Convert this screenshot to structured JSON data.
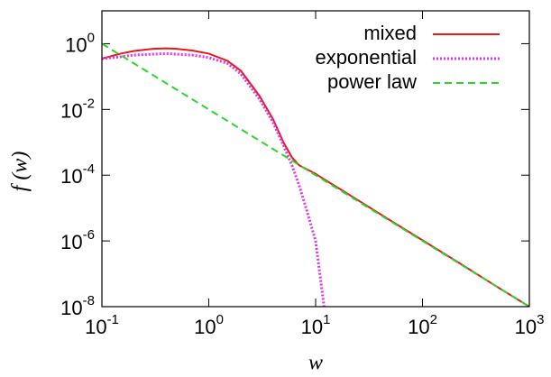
{
  "chart_data": {
    "type": "line",
    "x_label": "w",
    "y_label": "f (w)",
    "x": [
      0.1,
      0.15,
      0.2,
      0.3,
      0.4,
      0.5,
      0.7,
      1,
      1.5,
      2,
      3,
      4,
      5,
      6,
      7,
      8,
      10,
      12,
      20,
      50,
      100,
      200,
      500,
      1000
    ],
    "series": [
      {
        "name": "mixed",
        "color": "#e41a1c",
        "dash": "solid",
        "values": [
          0.35,
          0.5,
          0.6,
          0.7,
          0.72,
          0.7,
          0.62,
          0.5,
          0.3,
          0.15,
          0.025,
          0.005,
          0.001,
          0.00035,
          0.0002,
          0.00016,
          0.00011,
          7.5e-05,
          2.7e-05,
          4.2e-06,
          1.05e-06,
          2.6e-07,
          4e-08,
          1e-08
        ]
      },
      {
        "name": "exponential",
        "color": "#e633e6",
        "dash": "dotted",
        "values": [
          0.35,
          0.4,
          0.45,
          0.48,
          0.5,
          0.48,
          0.45,
          0.38,
          0.25,
          0.12,
          0.02,
          0.004,
          0.0008,
          0.0002,
          5e-05,
          1.2e-05,
          1e-06,
          1e-08,
          null,
          null,
          null,
          null,
          null,
          null
        ]
      },
      {
        "name": "power law",
        "color": "#2ad62a",
        "dash": "dashed",
        "values": [
          1,
          0.444,
          0.25,
          0.111,
          0.0625,
          0.04,
          0.0204,
          0.01,
          0.00444,
          0.0025,
          0.00111,
          0.000625,
          0.0004,
          0.000278,
          0.000204,
          0.000156,
          0.0001,
          6.94e-05,
          2.5e-05,
          4e-06,
          1e-06,
          2.5e-07,
          4e-08,
          1e-08
        ]
      }
    ],
    "xscale": "log",
    "yscale": "log",
    "xlim": [
      0.1,
      1000
    ],
    "ylim": [
      1e-08,
      10
    ],
    "xticks": [
      {
        "value": 0.1,
        "label": "10^-1"
      },
      {
        "value": 1,
        "label": "10^0"
      },
      {
        "value": 10,
        "label": "10^1"
      },
      {
        "value": 100,
        "label": "10^2"
      },
      {
        "value": 1000,
        "label": "10^3"
      }
    ],
    "yticks": [
      {
        "value": 1e-08,
        "label": "10^-8"
      },
      {
        "value": 1e-06,
        "label": "10^-6"
      },
      {
        "value": 0.0001,
        "label": "10^-4"
      },
      {
        "value": 0.01,
        "label": "10^-2"
      },
      {
        "value": 1,
        "label": "10^0"
      }
    ],
    "legend": "top-right",
    "grid": false
  }
}
